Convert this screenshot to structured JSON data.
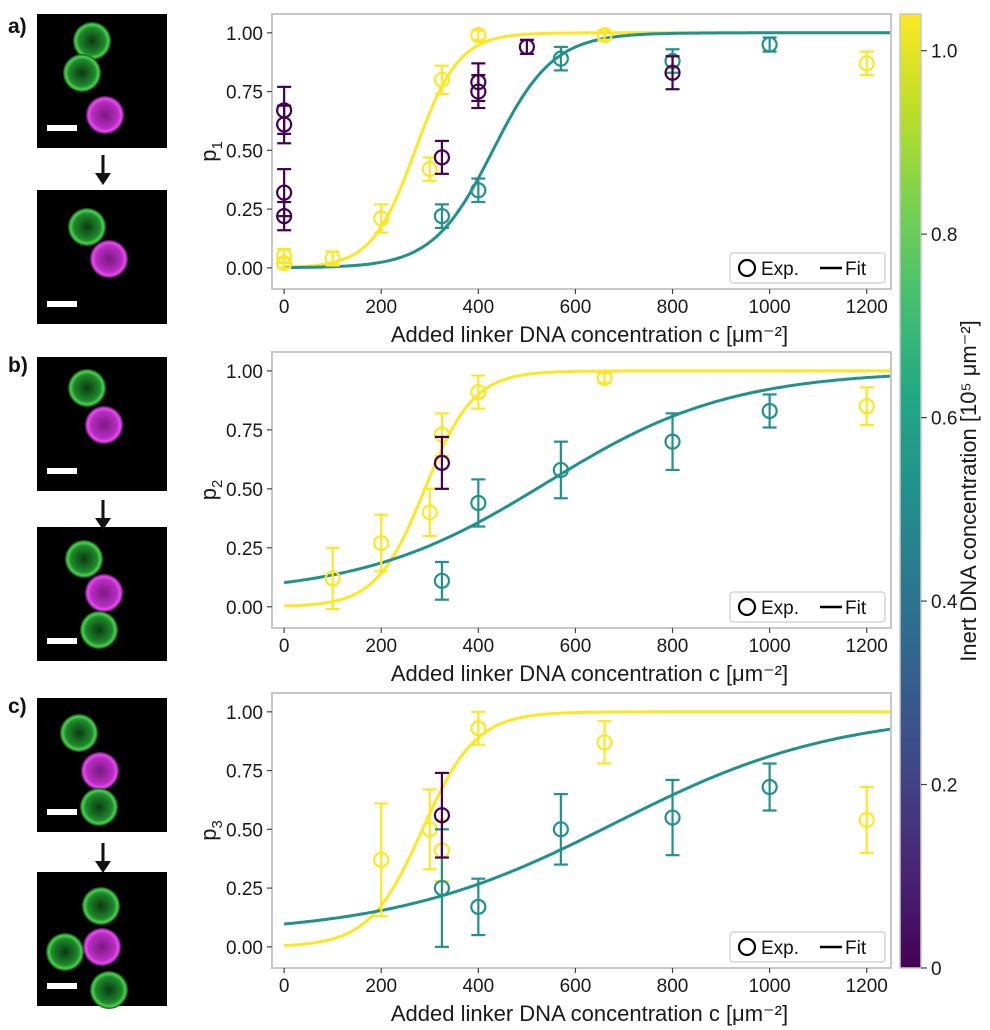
{
  "figure": {
    "colorbar": {
      "label": "Inert DNA concentration [10⁵ μm⁻²]",
      "ticks": [
        "0",
        "0.2",
        "0.4",
        "0.6",
        "0.8",
        "1.0"
      ],
      "tick_values": [
        0,
        0.2,
        0.4,
        0.6,
        0.8,
        1.0
      ],
      "range": [
        0,
        1.04
      ],
      "colormap": "viridis"
    },
    "micrographs": [
      {
        "panel": "a",
        "before": "green-green-magenta chain",
        "after": "green-magenta pair"
      },
      {
        "panel": "b",
        "before": "green-magenta pair",
        "after": "green-magenta-green chain"
      },
      {
        "panel": "c",
        "before": "green-magenta-green chain",
        "after": "branched trimer"
      }
    ]
  },
  "chart_data": [
    {
      "type": "scatter",
      "panel_label": "a)",
      "ylabel_main": "p",
      "ylabel_sub": "1",
      "xlabel": "Added linker DNA concentration c [μm⁻²]",
      "xlim": [
        -25,
        1250
      ],
      "ylim": [
        -0.09,
        1.08
      ],
      "xticks": [
        0,
        200,
        400,
        600,
        800,
        1000,
        1200
      ],
      "yticks": [
        0.0,
        0.25,
        0.5,
        0.75,
        1.0
      ],
      "ytick_labels": [
        "0.00",
        "0.25",
        "0.50",
        "0.75",
        "1.00"
      ],
      "legend": {
        "exp": "Exp.",
        "fit": "Fit",
        "position": "lower-right"
      },
      "series": [
        {
          "inert": 1.04,
          "color": "#fde725",
          "points": [
            {
              "x": 0,
              "y": 0.02,
              "err": 0.02
            },
            {
              "x": 0,
              "y": 0.05,
              "err": 0.03
            },
            {
              "x": 100,
              "y": 0.04,
              "err": 0.03
            },
            {
              "x": 200,
              "y": 0.21,
              "err": 0.06
            },
            {
              "x": 300,
              "y": 0.42,
              "err": 0.05
            },
            {
              "x": 325,
              "y": 0.8,
              "err": 0.06
            },
            {
              "x": 400,
              "y": 0.99,
              "err": 0.02
            },
            {
              "x": 660,
              "y": 0.99,
              "err": 0.02
            },
            {
              "x": 1200,
              "y": 0.87,
              "err": 0.05
            }
          ],
          "fit": {
            "x0": 270,
            "w": 45,
            "base": 0.0
          }
        },
        {
          "inert": 0.62,
          "color": "#21918c",
          "points": [
            {
              "x": 325,
              "y": 0.22,
              "err": 0.05
            },
            {
              "x": 400,
              "y": 0.33,
              "err": 0.05
            },
            {
              "x": 570,
              "y": 0.89,
              "err": 0.05
            },
            {
              "x": 800,
              "y": 0.88,
              "err": 0.05
            },
            {
              "x": 1000,
              "y": 0.95,
              "err": 0.03
            }
          ],
          "fit": {
            "x0": 430,
            "w": 62,
            "base": 0.0
          }
        },
        {
          "inert": 0.0,
          "color": "#440154",
          "points": [
            {
              "x": 0,
              "y": 0.22,
              "err": 0.06
            },
            {
              "x": 0,
              "y": 0.32,
              "err": 0.1
            },
            {
              "x": 0,
              "y": 0.61,
              "err": 0.08
            },
            {
              "x": 0,
              "y": 0.67,
              "err": 0.1
            },
            {
              "x": 325,
              "y": 0.47,
              "err": 0.07
            },
            {
              "x": 400,
              "y": 0.75,
              "err": 0.07
            },
            {
              "x": 400,
              "y": 0.79,
              "err": 0.08
            },
            {
              "x": 500,
              "y": 0.94,
              "err": 0.03
            },
            {
              "x": 800,
              "y": 0.83,
              "err": 0.07
            }
          ],
          "fit": null
        }
      ]
    },
    {
      "type": "scatter",
      "panel_label": "b)",
      "ylabel_main": "p",
      "ylabel_sub": "2",
      "xlabel": "Added linker DNA concentration c [μm⁻²]",
      "xlim": [
        -25,
        1250
      ],
      "ylim": [
        -0.09,
        1.08
      ],
      "xticks": [
        0,
        200,
        400,
        600,
        800,
        1000,
        1200
      ],
      "yticks": [
        0.0,
        0.25,
        0.5,
        0.75,
        1.0
      ],
      "ytick_labels": [
        "0.00",
        "0.25",
        "0.50",
        "0.75",
        "1.00"
      ],
      "legend": {
        "exp": "Exp.",
        "fit": "Fit",
        "position": "lower-right"
      },
      "series": [
        {
          "inert": 1.04,
          "color": "#fde725",
          "points": [
            {
              "x": 100,
              "y": 0.12,
              "err": 0.13
            },
            {
              "x": 200,
              "y": 0.27,
              "err": 0.12
            },
            {
              "x": 300,
              "y": 0.4,
              "err": 0.1
            },
            {
              "x": 325,
              "y": 0.73,
              "err": 0.09
            },
            {
              "x": 400,
              "y": 0.91,
              "err": 0.07
            },
            {
              "x": 660,
              "y": 0.97,
              "err": 0.02
            },
            {
              "x": 1200,
              "y": 0.85,
              "err": 0.08
            }
          ],
          "fit": {
            "x0": 290,
            "w": 50,
            "base": 0.0
          }
        },
        {
          "inert": 0.62,
          "color": "#21918c",
          "points": [
            {
              "x": 325,
              "y": 0.11,
              "err": 0.08
            },
            {
              "x": 400,
              "y": 0.44,
              "err": 0.1
            },
            {
              "x": 570,
              "y": 0.58,
              "err": 0.12
            },
            {
              "x": 800,
              "y": 0.7,
              "err": 0.12
            },
            {
              "x": 1000,
              "y": 0.83,
              "err": 0.07
            }
          ],
          "fit": {
            "x0": 540,
            "w": 190,
            "base": 0.05
          }
        },
        {
          "inert": 0.0,
          "color": "#440154",
          "points": [
            {
              "x": 325,
              "y": 0.61,
              "err": 0.11
            }
          ],
          "fit": null
        }
      ]
    },
    {
      "type": "scatter",
      "panel_label": "c)",
      "ylabel_main": "p",
      "ylabel_sub": "3",
      "xlabel": "Added linker DNA concentration c [μm⁻²]",
      "xlim": [
        -25,
        1250
      ],
      "ylim": [
        -0.09,
        1.08
      ],
      "xticks": [
        0,
        200,
        400,
        600,
        800,
        1000,
        1200
      ],
      "yticks": [
        0.0,
        0.25,
        0.5,
        0.75,
        1.0
      ],
      "ytick_labels": [
        "0.00",
        "0.25",
        "0.50",
        "0.75",
        "1.00"
      ],
      "legend": {
        "exp": "Exp.",
        "fit": "Fit",
        "position": "lower-right"
      },
      "series": [
        {
          "inert": 1.04,
          "color": "#fde725",
          "points": [
            {
              "x": 200,
              "y": 0.37,
              "err": 0.24
            },
            {
              "x": 300,
              "y": 0.5,
              "err": 0.17
            },
            {
              "x": 325,
              "y": 0.41,
              "err": 0.13
            },
            {
              "x": 400,
              "y": 0.93,
              "err": 0.07
            },
            {
              "x": 660,
              "y": 0.87,
              "err": 0.09
            },
            {
              "x": 1200,
              "y": 0.54,
              "err": 0.14
            }
          ],
          "fit": {
            "x0": 285,
            "w": 55,
            "base": 0.0
          }
        },
        {
          "inert": 0.62,
          "color": "#21918c",
          "points": [
            {
              "x": 325,
              "y": 0.25,
              "err": 0.25
            },
            {
              "x": 400,
              "y": 0.17,
              "err": 0.12
            },
            {
              "x": 570,
              "y": 0.5,
              "err": 0.15
            },
            {
              "x": 800,
              "y": 0.55,
              "err": 0.16
            },
            {
              "x": 1000,
              "y": 0.68,
              "err": 0.1
            }
          ],
          "fit": {
            "x0": 680,
            "w": 230,
            "base": 0.05
          }
        },
        {
          "inert": 0.0,
          "color": "#440154",
          "points": [
            {
              "x": 325,
              "y": 0.56,
              "err": 0.18
            }
          ],
          "fit": null
        }
      ]
    }
  ]
}
